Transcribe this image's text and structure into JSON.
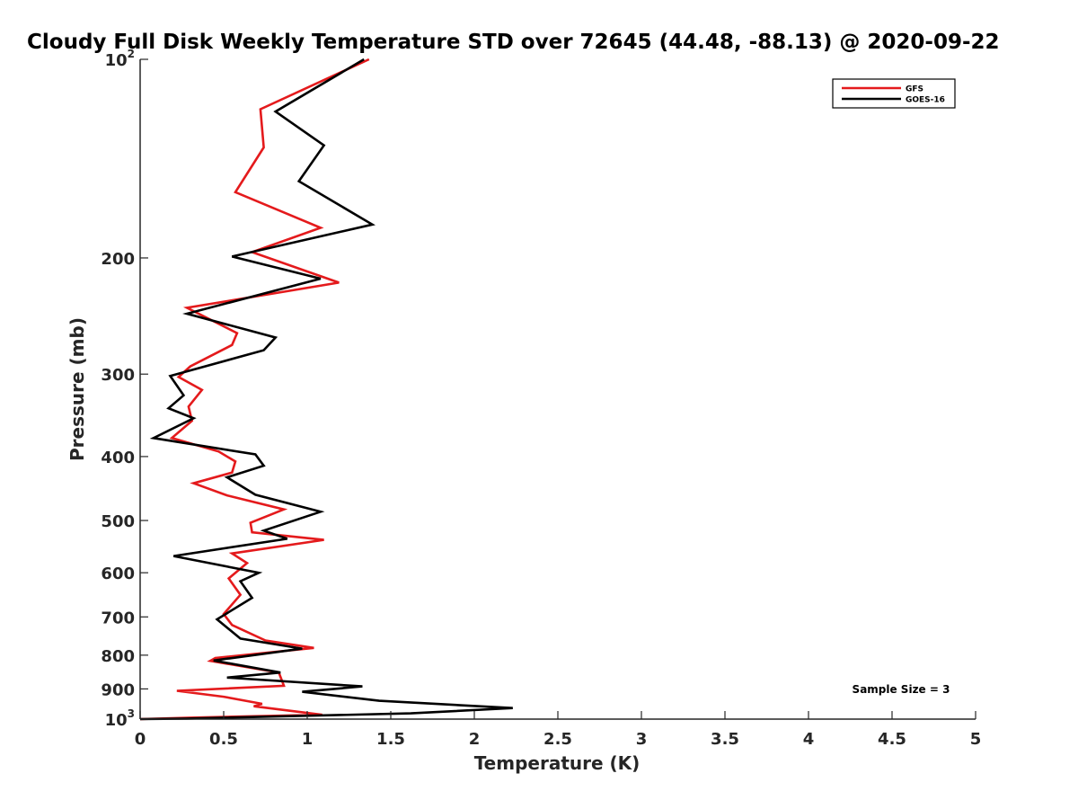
{
  "chart_data": {
    "type": "line",
    "title": "Cloudy Full Disk Weekly Temperature STD over 72645 (44.48, -88.13) @ 2020-09-22",
    "xlabel": "Temperature (K)",
    "ylabel": "Pressure (mb)",
    "xlim": [
      0,
      5
    ],
    "ylim": [
      100,
      1000
    ],
    "y_scale": "log",
    "y_reversed": true,
    "grid": false,
    "legend_position": "top-right",
    "x_ticks": [
      0,
      0.5,
      1,
      1.5,
      2,
      2.5,
      3,
      3.5,
      4,
      4.5,
      5
    ],
    "x_tick_labels": [
      "0",
      "0.5",
      "1",
      "1.5",
      "2",
      "2.5",
      "3",
      "3.5",
      "4",
      "4.5",
      "5"
    ],
    "y_ticks": [
      {
        "value": 100,
        "base": "10",
        "exp": "2"
      },
      {
        "value": 200,
        "label": "200"
      },
      {
        "value": 300,
        "label": "300"
      },
      {
        "value": 400,
        "label": "400"
      },
      {
        "value": 500,
        "label": "500"
      },
      {
        "value": 600,
        "label": "600"
      },
      {
        "value": 700,
        "label": "700"
      },
      {
        "value": 800,
        "label": "800"
      },
      {
        "value": 900,
        "label": "900"
      },
      {
        "value": 1000,
        "base": "10",
        "exp": "3"
      }
    ],
    "annotation": "Sample Size = 3",
    "series": [
      {
        "name": "GFS",
        "color": "#e41a1c",
        "points": [
          [
            1.37,
            100
          ],
          [
            0.72,
            119
          ],
          [
            0.74,
            136
          ],
          [
            0.57,
            159
          ],
          [
            1.08,
            180
          ],
          [
            0.67,
            196
          ],
          [
            1.19,
            218
          ],
          [
            0.28,
            238
          ],
          [
            0.58,
            260
          ],
          [
            0.55,
            271
          ],
          [
            0.3,
            292
          ],
          [
            0.23,
            303
          ],
          [
            0.37,
            317
          ],
          [
            0.29,
            336
          ],
          [
            0.31,
            353
          ],
          [
            0.19,
            375
          ],
          [
            0.47,
            393
          ],
          [
            0.57,
            407
          ],
          [
            0.55,
            423
          ],
          [
            0.32,
            439
          ],
          [
            0.52,
            458
          ],
          [
            0.86,
            481
          ],
          [
            0.66,
            504
          ],
          [
            0.67,
            521
          ],
          [
            1.1,
            535
          ],
          [
            0.55,
            561
          ],
          [
            0.64,
            580
          ],
          [
            0.53,
            612
          ],
          [
            0.6,
            648
          ],
          [
            0.5,
            693
          ],
          [
            0.55,
            720
          ],
          [
            0.75,
            760
          ],
          [
            1.04,
            780
          ],
          [
            0.45,
            808
          ],
          [
            0.42,
            816
          ],
          [
            0.83,
            850
          ],
          [
            0.86,
            890
          ],
          [
            0.22,
            906
          ],
          [
            0.5,
            925
          ],
          [
            0.73,
            948
          ],
          [
            0.68,
            956
          ],
          [
            1.09,
            985
          ],
          [
            0.3,
            995
          ],
          [
            0.0,
            1000
          ]
        ]
      },
      {
        "name": "GOES-16",
        "color": "#000000",
        "points": [
          [
            1.34,
            100
          ],
          [
            0.81,
            120
          ],
          [
            1.1,
            135
          ],
          [
            0.95,
            153
          ],
          [
            1.39,
            178
          ],
          [
            0.55,
            199
          ],
          [
            1.08,
            215
          ],
          [
            0.28,
            243
          ],
          [
            0.81,
            264
          ],
          [
            0.74,
            276
          ],
          [
            0.18,
            302
          ],
          [
            0.26,
            323
          ],
          [
            0.17,
            338
          ],
          [
            0.32,
            350
          ],
          [
            0.08,
            375
          ],
          [
            0.69,
            397
          ],
          [
            0.74,
            413
          ],
          [
            0.52,
            430
          ],
          [
            0.69,
            457
          ],
          [
            1.08,
            485
          ],
          [
            0.74,
            518
          ],
          [
            0.88,
            533
          ],
          [
            0.2,
            566
          ],
          [
            0.71,
            600
          ],
          [
            0.6,
            618
          ],
          [
            0.67,
            655
          ],
          [
            0.46,
            706
          ],
          [
            0.6,
            755
          ],
          [
            0.97,
            782
          ],
          [
            0.44,
            815
          ],
          [
            0.84,
            850
          ],
          [
            0.52,
            865
          ],
          [
            1.33,
            892
          ],
          [
            0.97,
            909
          ],
          [
            1.43,
            938
          ],
          [
            2.23,
            962
          ],
          [
            1.62,
            980
          ],
          [
            0.28,
            998
          ],
          [
            0.0,
            1000
          ]
        ]
      }
    ]
  }
}
